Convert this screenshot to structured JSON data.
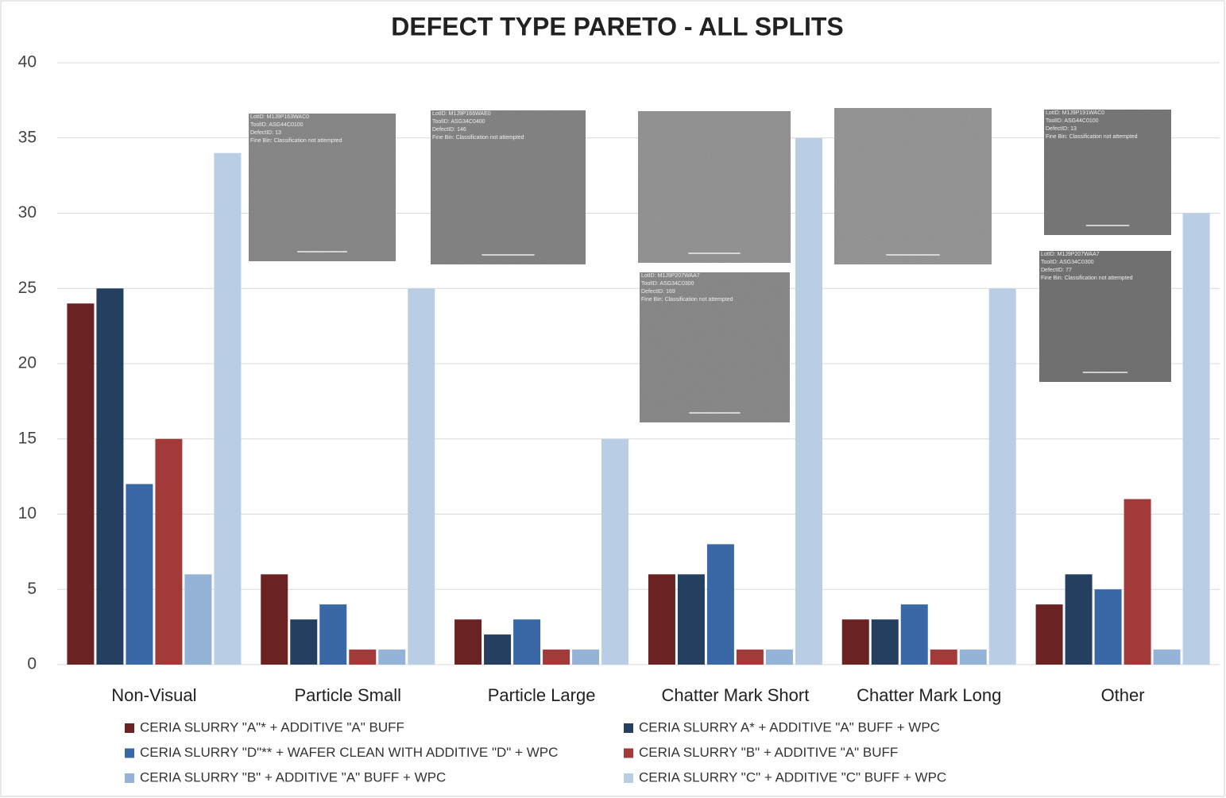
{
  "chart_data": {
    "type": "bar",
    "title": "DEFECT TYPE PARETO - ALL SPLITS",
    "categories": [
      "Non-Visual",
      "Particle Small",
      "Particle Large",
      "Chatter Mark Short",
      "Chatter Mark Long",
      "Other"
    ],
    "series": [
      {
        "name": "CERIA SLURRY \"A\"* + ADDITIVE \"A\" BUFF",
        "color": "#6b2222",
        "values": [
          24,
          6,
          3,
          6,
          3,
          4
        ]
      },
      {
        "name": "CERIA SLURRY A* + ADDITIVE \"A\" BUFF + WPC",
        "color": "#243f60",
        "values": [
          25,
          3,
          2,
          6,
          3,
          6
        ]
      },
      {
        "name": "CERIA SLURRY \"D\"** + WAFER CLEAN WITH ADDITIVE \"D\" + WPC",
        "color": "#3a67a5",
        "values": [
          12,
          4,
          3,
          8,
          4,
          5
        ]
      },
      {
        "name": "CERIA SLURRY \"B\" + ADDITIVE \"A\" BUFF",
        "color": "#a33a3a",
        "values": [
          15,
          1,
          1,
          1,
          1,
          11
        ]
      },
      {
        "name": "CERIA SLURRY \"B\" + ADDITIVE \"A\" BUFF + WPC",
        "color": "#95b3d7",
        "values": [
          6,
          1,
          1,
          1,
          1,
          1
        ]
      },
      {
        "name": "CERIA SLURRY \"C\" + ADDITIVE \"C\" BUFF + WPC",
        "color": "#b9cde5",
        "values": [
          34,
          25,
          15,
          35,
          25,
          30
        ]
      }
    ],
    "ylim": [
      0,
      40
    ],
    "yticks": [
      0,
      5,
      10,
      15,
      20,
      25,
      30,
      35,
      40
    ],
    "grid": true,
    "annotations": [
      [
        "LotID: M1J9P163WAC0",
        "ToolID: ASG44C0100",
        "DefectID: 13",
        "Fine Bin: Classification not attempted"
      ],
      [
        "LotID: M1J9P166WAE0",
        "ToolID: ASG34C0400",
        "DefectID: 146",
        "Fine Bin: Classification not attempted"
      ],
      [],
      [
        "LotID: M1J9P207WAA7",
        "ToolID: ASG34C0300",
        "DefectID: 169",
        "Fine Bin: Classification not attempted"
      ],
      [],
      [
        "LotID: M1J9P191WAC0",
        "ToolID: ASG44C0100",
        "DefectID: 13",
        "Fine Bin: Classification not attempted"
      ],
      [
        "LotID: M1J9P207WAA7",
        "ToolID: ASG34C0300",
        "DefectID: 77",
        "Fine Bin: Classification not attempted"
      ]
    ]
  }
}
